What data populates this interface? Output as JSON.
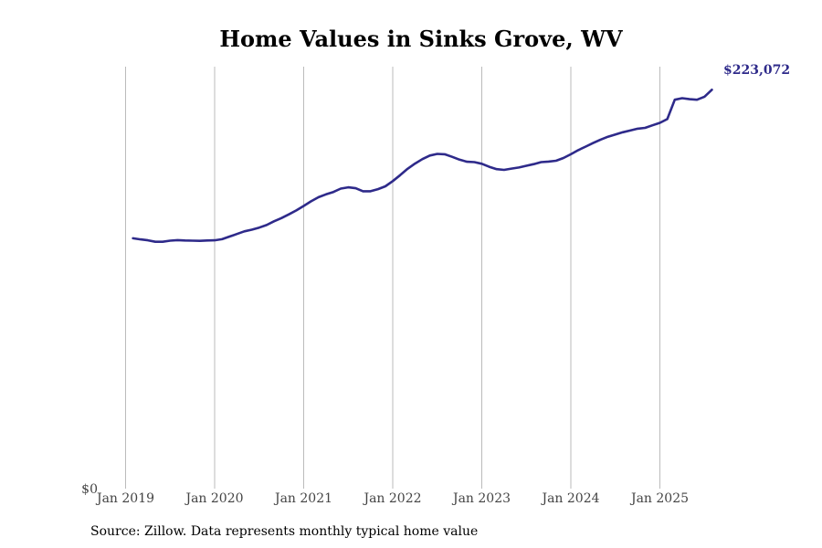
{
  "chart_data": {
    "type": "line",
    "title": "Home Values in Sinks Grove, WV",
    "xlabel": "",
    "ylabel": "",
    "x_ticks": [
      "Jan 2019",
      "Jan 2020",
      "Jan 2021",
      "Jan 2022",
      "Jan 2023",
      "Jan 2024",
      "Jan 2025"
    ],
    "y_tick_label": "$0",
    "ylim": [
      0,
      236000
    ],
    "xlim": [
      "2019-01",
      "2025-09"
    ],
    "grid": "vertical",
    "line_color": "#2e2a8a",
    "grid_color": "#bbbbbb",
    "end_label": "$223,072",
    "series": [
      {
        "values": [
          [
            "2019-02",
            140000
          ],
          [
            "2019-03",
            139400
          ],
          [
            "2019-04",
            138900
          ],
          [
            "2019-05",
            138100
          ],
          [
            "2019-06",
            138100
          ],
          [
            "2019-07",
            138700
          ],
          [
            "2019-08",
            139000
          ],
          [
            "2019-09",
            138800
          ],
          [
            "2019-10",
            138700
          ],
          [
            "2019-11",
            138600
          ],
          [
            "2019-12",
            138800
          ],
          [
            "2020-01",
            138900
          ],
          [
            "2020-02",
            139500
          ],
          [
            "2020-03",
            141000
          ],
          [
            "2020-04",
            142400
          ],
          [
            "2020-05",
            143900
          ],
          [
            "2020-06",
            144800
          ],
          [
            "2020-07",
            146000
          ],
          [
            "2020-08",
            147400
          ],
          [
            "2020-09",
            149500
          ],
          [
            "2020-10",
            151300
          ],
          [
            "2020-11",
            153400
          ],
          [
            "2020-12",
            155600
          ],
          [
            "2021-01",
            158100
          ],
          [
            "2021-02",
            160700
          ],
          [
            "2021-03",
            163000
          ],
          [
            "2021-04",
            164600
          ],
          [
            "2021-05",
            165900
          ],
          [
            "2021-06",
            167800
          ],
          [
            "2021-07",
            168500
          ],
          [
            "2021-08",
            168000
          ],
          [
            "2021-09",
            166300
          ],
          [
            "2021-10",
            166300
          ],
          [
            "2021-11",
            167500
          ],
          [
            "2021-12",
            169100
          ],
          [
            "2022-01",
            172000
          ],
          [
            "2022-02",
            175300
          ],
          [
            "2022-03",
            178900
          ],
          [
            "2022-04",
            181800
          ],
          [
            "2022-05",
            184300
          ],
          [
            "2022-06",
            186300
          ],
          [
            "2022-07",
            187200
          ],
          [
            "2022-08",
            187000
          ],
          [
            "2022-09",
            185600
          ],
          [
            "2022-10",
            184000
          ],
          [
            "2022-11",
            182800
          ],
          [
            "2022-12",
            182600
          ],
          [
            "2023-01",
            181700
          ],
          [
            "2023-02",
            180000
          ],
          [
            "2023-03",
            178700
          ],
          [
            "2023-04",
            178300
          ],
          [
            "2023-05",
            179000
          ],
          [
            "2023-06",
            179600
          ],
          [
            "2023-07",
            180600
          ],
          [
            "2023-08",
            181500
          ],
          [
            "2023-09",
            182600
          ],
          [
            "2023-10",
            182900
          ],
          [
            "2023-11",
            183400
          ],
          [
            "2023-12",
            184900
          ],
          [
            "2024-01",
            187000
          ],
          [
            "2024-02",
            189300
          ],
          [
            "2024-03",
            191300
          ],
          [
            "2024-04",
            193300
          ],
          [
            "2024-05",
            195200
          ],
          [
            "2024-06",
            196800
          ],
          [
            "2024-07",
            198100
          ],
          [
            "2024-08",
            199300
          ],
          [
            "2024-09",
            200300
          ],
          [
            "2024-10",
            201300
          ],
          [
            "2024-11",
            201800
          ],
          [
            "2024-12",
            203200
          ],
          [
            "2025-01",
            204600
          ],
          [
            "2025-02",
            206700
          ],
          [
            "2025-03",
            217500
          ],
          [
            "2025-04",
            218400
          ],
          [
            "2025-05",
            217800
          ],
          [
            "2025-06",
            217500
          ],
          [
            "2025-07",
            219200
          ],
          [
            "2025-08",
            223072
          ]
        ]
      }
    ]
  },
  "footer": {
    "source": "Source: Zillow. Data represents monthly typical home value"
  }
}
